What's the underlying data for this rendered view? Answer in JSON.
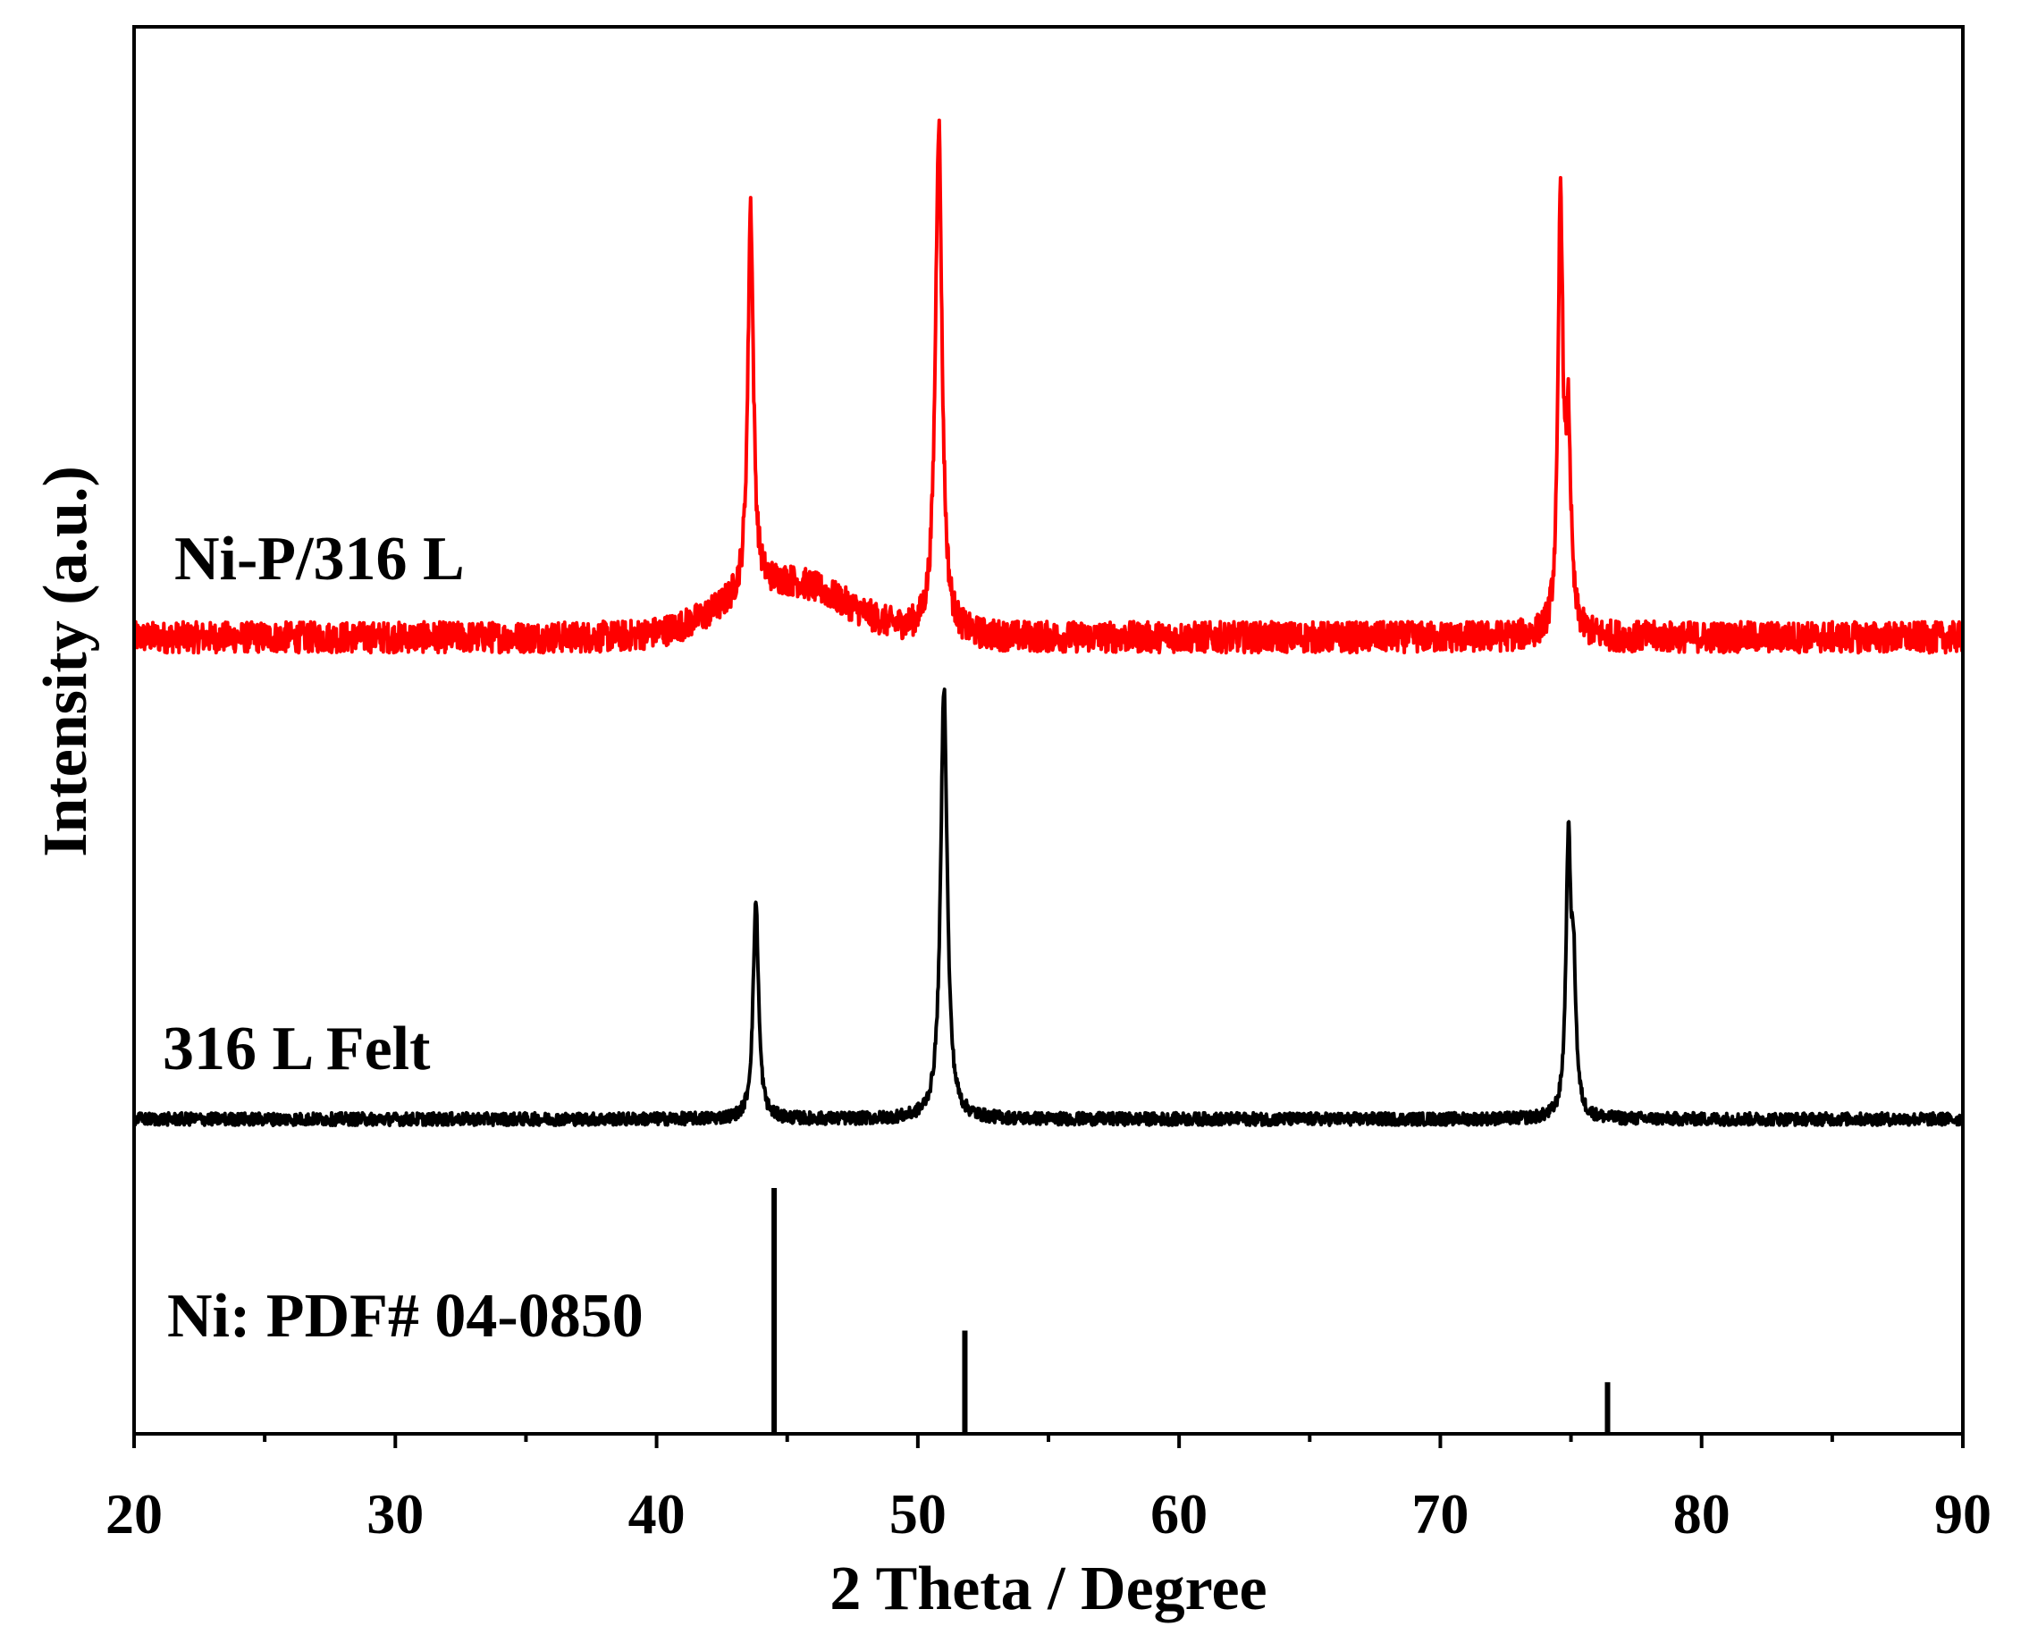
{
  "chart_data": {
    "type": "line",
    "xlabel": "2 Theta / Degree",
    "ylabel": "Intensity (a.u.)",
    "xlim": [
      20,
      90
    ],
    "x_ticks": [
      20,
      30,
      40,
      50,
      60,
      70,
      80,
      90
    ],
    "x_minor_step": 5,
    "y_ticks_shown": false,
    "grid": false,
    "legend": "none (series labelled directly on plot)",
    "series": [
      {
        "name": "Ni-P/316 L",
        "color": "#ff0000",
        "baseline": 0,
        "noise": 4,
        "hump": {
          "center": 45,
          "width": 3.2,
          "height": 14
        },
        "peaks": [
          {
            "x": 43.6,
            "y": 100,
            "fwhm": 0.25
          },
          {
            "x": 50.8,
            "y": 132,
            "fwhm": 0.3
          },
          {
            "x": 74.6,
            "y": 112,
            "fwhm": 0.22
          },
          {
            "x": 74.9,
            "y": 50,
            "fwhm": 0.22
          }
        ]
      },
      {
        "name": "316 L Felt",
        "color": "#000000",
        "baseline": 0,
        "noise": 1.5,
        "peaks": [
          {
            "x": 43.8,
            "y": 52,
            "fwhm": 0.25
          },
          {
            "x": 51.0,
            "y": 103,
            "fwhm": 0.3
          },
          {
            "x": 74.9,
            "y": 63,
            "fwhm": 0.22
          },
          {
            "x": 75.1,
            "y": 31,
            "fwhm": 0.22
          }
        ]
      }
    ],
    "reference": {
      "name": "Ni: PDF# 04-0850",
      "color": "#000000",
      "type": "stick",
      "lines": [
        {
          "x": 44.5,
          "y": 100
        },
        {
          "x": 51.8,
          "y": 42
        },
        {
          "x": 76.4,
          "y": 21
        }
      ]
    }
  }
}
